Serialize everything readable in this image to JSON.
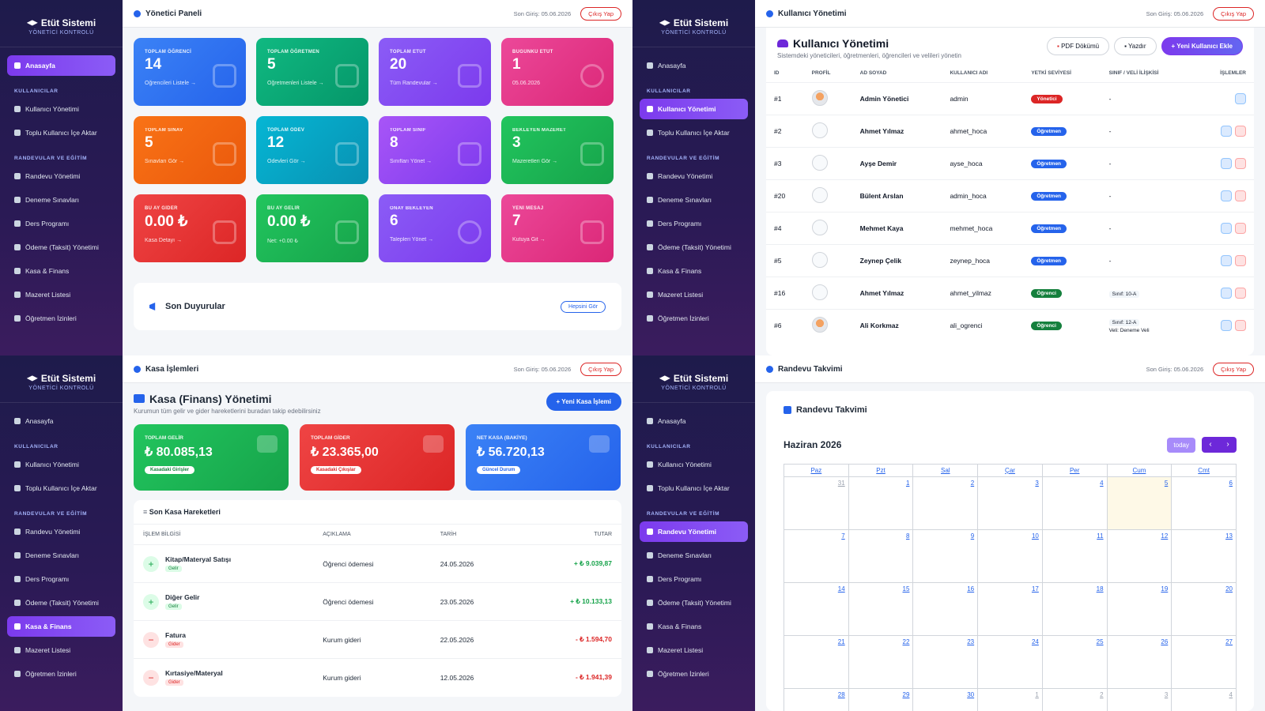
{
  "brand": {
    "title": "Etüt Sistemi",
    "subtitle": "YÖNETİCİ KONTROLÜ"
  },
  "nav": {
    "home": "Anasayfa",
    "sec_users": "KULLANICILAR",
    "users": "Kullanıcı Yönetimi",
    "import": "Toplu Kullanıcı İçe Aktar",
    "sec_app": "RANDEVULAR VE EĞİTİM",
    "appointments": "Randevu Yönetimi",
    "exams": "Deneme Sınavları",
    "schedule": "Ders Programı",
    "payments": "Ödeme (Taksit) Yönetimi",
    "finance": "Kasa & Finans",
    "excuses": "Mazeret Listesi",
    "leaves": "Öğretmen İzinleri"
  },
  "topbar": {
    "last_login": "Son Giriş: 05.06.2026",
    "logout": "Çıkış Yap"
  },
  "dashboard": {
    "title": "Yönetici Paneli",
    "cards": [
      {
        "label": "TOPLAM ÖĞRENCİ",
        "value": "14",
        "sub": "Öğrencileri Listele →",
        "icon": "graduation-cap-icon",
        "color": "blue"
      },
      {
        "label": "TOPLAM ÖĞRETMEN",
        "value": "5",
        "sub": "Öğretmenleri Listele →",
        "icon": "chalkboard-icon",
        "color": "green"
      },
      {
        "label": "TOPLAM ETÜT",
        "value": "20",
        "sub": "Tüm Randevular →",
        "icon": "calendar-check-icon",
        "color": "purple"
      },
      {
        "label": "BUGÜNKÜ ETÜT",
        "value": "1",
        "sub": "05.06.2026",
        "icon": "clock-icon",
        "color": "pink"
      },
      {
        "label": "TOPLAM SINAV",
        "value": "5",
        "sub": "Sınavları Gör →",
        "icon": "bar-chart-icon",
        "color": "orange"
      },
      {
        "label": "TOPLAM ÖDEV",
        "value": "12",
        "sub": "Ödevleri Gör →",
        "icon": "book-icon",
        "color": "cyan"
      },
      {
        "label": "TOPLAM SINIF",
        "value": "8",
        "sub": "Sınıfları Yönet →",
        "icon": "laptop-icon",
        "color": "violet"
      },
      {
        "label": "BEKLEYEN MAZERET",
        "value": "3",
        "sub": "Mazeretleri Gör →",
        "icon": "document-icon",
        "color": "emerald"
      },
      {
        "label": "BU AY GİDER",
        "value": "0.00 ₺",
        "sub": "Kasa Detayı →",
        "icon": "wallet-icon",
        "color": "red"
      },
      {
        "label": "BU AY GELİR",
        "value": "0.00 ₺",
        "sub": "Net: +0.00 ₺",
        "icon": "money-bag-icon",
        "color": "green"
      },
      {
        "label": "ONAY BEKLEYEN",
        "value": "6",
        "sub": "Talepleri Yönet →",
        "icon": "clock-icon",
        "color": "purple"
      },
      {
        "label": "YENİ MESAJ",
        "value": "7",
        "sub": "Kutuya Git →",
        "icon": "envelope-icon",
        "color": "pink"
      }
    ],
    "announcements": {
      "title": "Son Duyurular",
      "all": "Hepsini Gör"
    }
  },
  "users": {
    "top_title": "Kullanıcı Yönetimi",
    "title": "Kullanıcı Yönetimi",
    "subtitle": "Sistemdeki yöneticileri, öğretmenleri, öğrencileri ve velileri yönetin",
    "btn_pdf": "PDF Dökümü",
    "btn_print": "Yazdır",
    "btn_new": "Yeni Kullanıcı Ekle",
    "columns": [
      "ID",
      "PROFİL",
      "AD SOYAD",
      "KULLANICI ADI",
      "YETKİ SEVİYESİ",
      "SINIF / VELİ İLİŞKİSİ",
      "İŞLEMLER"
    ],
    "rows": [
      {
        "id": "#1",
        "name": "Admin Yönetici",
        "user": "admin",
        "role": "Yönetici",
        "rel": "-",
        "photo": true
      },
      {
        "id": "#2",
        "name": "Ahmet Yılmaz",
        "user": "ahmet_hoca",
        "role": "Öğretmen",
        "rel": "-",
        "photo": false
      },
      {
        "id": "#3",
        "name": "Ayşe Demir",
        "user": "ayse_hoca",
        "role": "Öğretmen",
        "rel": "-",
        "photo": false
      },
      {
        "id": "#20",
        "name": "Bülent Arslan",
        "user": "admin_hoca",
        "role": "Öğretmen",
        "rel": "-",
        "photo": false
      },
      {
        "id": "#4",
        "name": "Mehmet Kaya",
        "user": "mehmet_hoca",
        "role": "Öğretmen",
        "rel": "-",
        "photo": false
      },
      {
        "id": "#5",
        "name": "Zeynep Çelik",
        "user": "zeynep_hoca",
        "role": "Öğretmen",
        "rel": "-",
        "photo": false
      },
      {
        "id": "#16",
        "name": "Ahmet Yılmaz",
        "user": "ahmet_yilmaz",
        "role": "Öğrenci",
        "rel": "Sınıf: 10-A",
        "photo": false
      },
      {
        "id": "#6",
        "name": "Ali Korkmaz",
        "user": "ali_ogrenci",
        "role": "Öğrenci",
        "rel": "Sınıf: 12-A",
        "rel2": "Veli: Deneme Veli",
        "photo": true
      }
    ]
  },
  "finance": {
    "top_title": "Kasa İşlemleri",
    "title": "Kasa (Finans) Yönetimi",
    "subtitle": "Kurumun tüm gelir ve gider hareketlerini buradan takip edebilirsiniz",
    "btn_new": "+ Yeni Kasa İşlemi",
    "cards": [
      {
        "label": "TOPLAM GELİR",
        "value": "₺ 80.085,13",
        "badge": "Kasadaki Girişler"
      },
      {
        "label": "TOPLAM GİDER",
        "value": "₺ 23.365,00",
        "badge": "Kasadaki Çıkışlar"
      },
      {
        "label": "NET KASA (BAKİYE)",
        "value": "₺ 56.720,13",
        "badge": "Güncel Durum"
      }
    ],
    "list_title": "Son Kasa Hareketleri",
    "columns": [
      "İŞLEM BİLGİSİ",
      "AÇIKLAMA",
      "TARİH",
      "TUTAR"
    ],
    "rows": [
      {
        "name": "Kitap/Materyal Satışı",
        "tag": "Gelir",
        "desc": "Öğrenci ödemesi",
        "date": "24.05.2026",
        "amount": "+ ₺ 9.039,87",
        "type": "in"
      },
      {
        "name": "Diğer Gelir",
        "tag": "Gelir",
        "desc": "Öğrenci ödemesi",
        "date": "23.05.2026",
        "amount": "+ ₺ 10.133,13",
        "type": "in"
      },
      {
        "name": "Fatura",
        "tag": "Gider",
        "desc": "Kurum gideri",
        "date": "22.05.2026",
        "amount": "- ₺ 1.594,70",
        "type": "out"
      },
      {
        "name": "Kırtasiye/Materyal",
        "tag": "Gider",
        "desc": "Kurum gideri",
        "date": "12.05.2026",
        "amount": "- ₺ 1.941,39",
        "type": "out"
      }
    ]
  },
  "calendar": {
    "top_title": "Randevu Takvimi",
    "title": "Randevu Takvimi",
    "month": "Haziran 2026",
    "today": "today",
    "prev": "‹",
    "next": "›",
    "days": [
      "Paz",
      "Pzt",
      "Sal",
      "Çar",
      "Per",
      "Cum",
      "Cmt"
    ],
    "cells": [
      "31",
      "1",
      "2",
      "3",
      "4",
      "5",
      "6",
      "7",
      "8",
      "9",
      "10",
      "11",
      "12",
      "13",
      "14",
      "15",
      "16",
      "17",
      "18",
      "19",
      "20",
      "21",
      "22",
      "23",
      "24",
      "25",
      "26",
      "27",
      "28",
      "29",
      "30",
      "1",
      "2",
      "3",
      "4"
    ]
  }
}
